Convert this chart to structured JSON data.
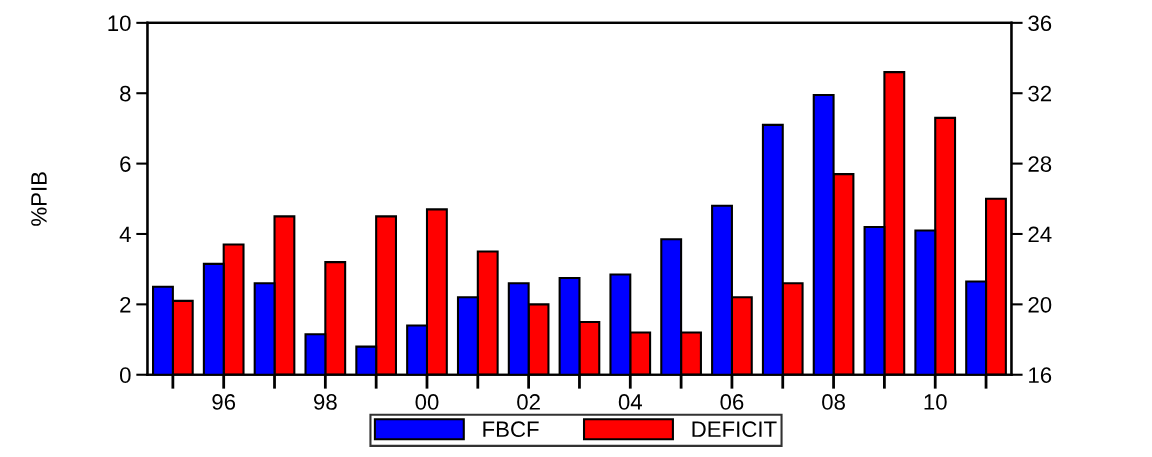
{
  "chart_data": {
    "type": "bar",
    "ylabel": "%PIB",
    "categories": [
      null,
      "96",
      null,
      "98",
      null,
      "00",
      null,
      "02",
      null,
      "04",
      null,
      "06",
      null,
      "08",
      null,
      "10",
      null
    ],
    "series": [
      {
        "name": "FBCF",
        "color": "#0000ff",
        "axis": "y2",
        "values": [
          21.0,
          22.3,
          21.2,
          18.3,
          17.6,
          18.8,
          20.4,
          21.2,
          21.5,
          21.7,
          23.7,
          25.6,
          30.2,
          31.9,
          24.4,
          24.2,
          21.3
        ]
      },
      {
        "name": "DEFICIT",
        "color": "#ff0000",
        "values": [
          2.1,
          3.7,
          4.5,
          3.2,
          4.5,
          4.7,
          3.5,
          2.0,
          1.5,
          1.2,
          1.2,
          2.2,
          2.6,
          5.7,
          8.6,
          7.3,
          5.0
        ]
      }
    ],
    "ylim": [
      0,
      10
    ],
    "yticks": [
      0,
      2,
      4,
      6,
      8,
      10
    ],
    "y2lim": [
      16,
      36
    ],
    "y2ticks": [
      16,
      20,
      24,
      28,
      32,
      36
    ],
    "grid": false,
    "legend": "bottom"
  }
}
